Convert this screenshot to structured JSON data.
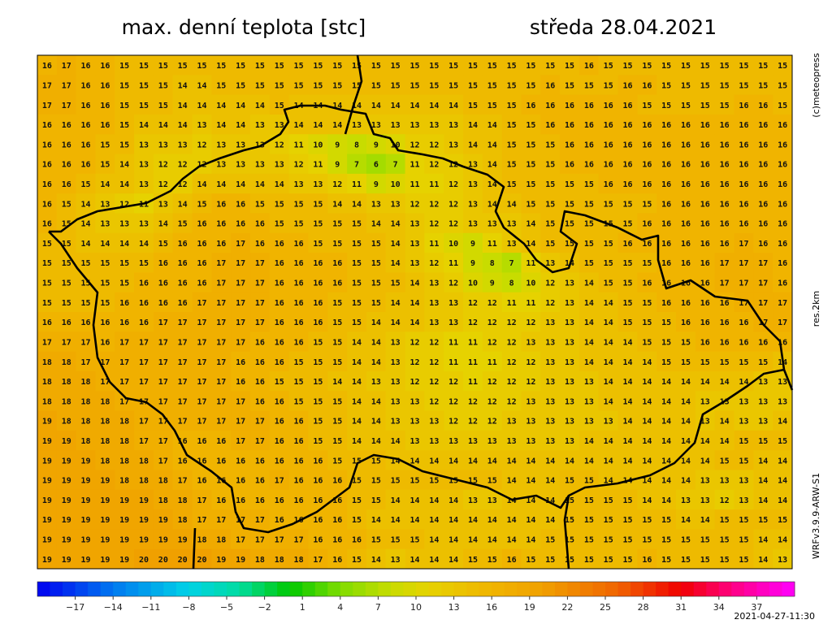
{
  "header": {
    "title": "max. denní teplota [stc]",
    "date": "středa 28.04.2021"
  },
  "side": {
    "copyright": "(c)meteopress",
    "resolution": "res.2km",
    "model": "WRFv3.9.9-ARW-S1"
  },
  "footer": {
    "run": "2021-04-27-11:30"
  },
  "colorbar": {
    "lim": [
      -20,
      40
    ],
    "stops": [
      [
        -20,
        "#0000f0"
      ],
      [
        -14,
        "#0078f0"
      ],
      [
        -8,
        "#00d2e6"
      ],
      [
        -4,
        "#00dca0"
      ],
      [
        0,
        "#00c800"
      ],
      [
        4,
        "#80dc00"
      ],
      [
        8,
        "#c8dc00"
      ],
      [
        11,
        "#e6d200"
      ],
      [
        16,
        "#f0b400"
      ],
      [
        20,
        "#f0a000"
      ],
      [
        26,
        "#f06400"
      ],
      [
        31,
        "#f00000"
      ],
      [
        35,
        "#ff0080"
      ],
      [
        40,
        "#ff00ff"
      ]
    ],
    "ticks": [
      {
        "value": -17,
        "label": "−17"
      },
      {
        "value": -14,
        "label": "−14"
      },
      {
        "value": -11,
        "label": "−11"
      },
      {
        "value": -8,
        "label": "−8"
      },
      {
        "value": -5,
        "label": "−5"
      },
      {
        "value": -2,
        "label": "−2"
      },
      1,
      4,
      7,
      10,
      13,
      16,
      19,
      22,
      25,
      28,
      31,
      34,
      37
    ]
  },
  "grid": {
    "rows": [
      [
        16,
        17,
        16,
        16,
        15,
        15,
        15,
        15,
        15,
        15,
        15,
        15,
        15,
        15,
        15,
        15,
        15,
        15,
        15,
        15,
        15,
        15,
        15,
        15,
        15,
        15,
        15,
        15,
        16,
        15,
        15,
        15,
        15,
        15,
        15,
        15,
        15,
        15,
        15
      ],
      [
        17,
        17,
        16,
        16,
        15,
        15,
        15,
        14,
        14,
        15,
        15,
        15,
        15,
        15,
        15,
        15,
        15,
        15,
        15,
        15,
        15,
        15,
        15,
        15,
        15,
        15,
        16,
        15,
        15,
        15,
        16,
        16,
        15,
        15,
        15,
        15,
        15,
        15,
        15
      ],
      [
        17,
        17,
        16,
        16,
        15,
        15,
        15,
        14,
        14,
        14,
        14,
        14,
        15,
        14,
        14,
        14,
        14,
        14,
        14,
        14,
        14,
        14,
        15,
        15,
        15,
        16,
        16,
        16,
        16,
        16,
        16,
        15,
        15,
        15,
        15,
        15,
        16,
        16,
        15
      ],
      [
        16,
        16,
        16,
        16,
        15,
        14,
        14,
        14,
        13,
        14,
        14,
        13,
        13,
        14,
        14,
        14,
        13,
        13,
        13,
        13,
        13,
        13,
        14,
        14,
        15,
        15,
        16,
        16,
        16,
        16,
        16,
        16,
        16,
        16,
        16,
        16,
        16,
        16,
        16
      ],
      [
        16,
        16,
        16,
        15,
        15,
        13,
        13,
        13,
        12,
        13,
        13,
        13,
        12,
        11,
        10,
        9,
        8,
        9,
        10,
        12,
        12,
        13,
        14,
        14,
        15,
        15,
        15,
        16,
        16,
        16,
        16,
        16,
        16,
        16,
        16,
        16,
        16,
        16,
        16
      ],
      [
        16,
        16,
        16,
        15,
        14,
        13,
        12,
        12,
        12,
        13,
        13,
        13,
        13,
        12,
        11,
        9,
        7,
        6,
        7,
        11,
        12,
        12,
        13,
        14,
        15,
        15,
        15,
        16,
        16,
        16,
        16,
        16,
        16,
        16,
        16,
        16,
        16,
        16,
        16
      ],
      [
        16,
        16,
        15,
        14,
        14,
        13,
        12,
        12,
        14,
        14,
        14,
        14,
        14,
        13,
        13,
        12,
        11,
        9,
        10,
        11,
        11,
        12,
        13,
        14,
        15,
        15,
        15,
        15,
        15,
        16,
        16,
        16,
        16,
        16,
        16,
        16,
        16,
        16,
        16
      ],
      [
        16,
        15,
        14,
        13,
        12,
        11,
        13,
        14,
        15,
        16,
        16,
        15,
        15,
        15,
        15,
        14,
        14,
        13,
        13,
        12,
        12,
        12,
        13,
        14,
        14,
        15,
        15,
        15,
        15,
        15,
        15,
        15,
        16,
        16,
        16,
        16,
        16,
        16,
        16
      ],
      [
        16,
        15,
        14,
        13,
        13,
        13,
        14,
        15,
        16,
        16,
        16,
        16,
        15,
        15,
        15,
        15,
        15,
        14,
        14,
        13,
        12,
        12,
        13,
        13,
        13,
        14,
        15,
        15,
        15,
        15,
        15,
        16,
        16,
        16,
        16,
        16,
        16,
        16,
        16
      ],
      [
        15,
        15,
        14,
        14,
        14,
        14,
        15,
        16,
        16,
        16,
        17,
        16,
        16,
        16,
        15,
        15,
        15,
        15,
        14,
        13,
        11,
        10,
        9,
        11,
        13,
        14,
        15,
        15,
        15,
        15,
        16,
        16,
        16,
        16,
        16,
        16,
        17,
        16,
        16
      ],
      [
        15,
        15,
        15,
        15,
        15,
        15,
        16,
        16,
        16,
        17,
        17,
        17,
        16,
        16,
        16,
        16,
        15,
        15,
        14,
        13,
        12,
        11,
        9,
        8,
        7,
        11,
        13,
        14,
        15,
        15,
        15,
        15,
        16,
        16,
        16,
        17,
        17,
        17,
        16
      ],
      [
        15,
        15,
        15,
        15,
        15,
        16,
        16,
        16,
        16,
        17,
        17,
        17,
        16,
        16,
        16,
        16,
        15,
        15,
        15,
        14,
        13,
        12,
        10,
        9,
        8,
        10,
        12,
        13,
        14,
        15,
        15,
        16,
        16,
        16,
        16,
        17,
        17,
        17,
        16
      ],
      [
        15,
        15,
        15,
        15,
        16,
        16,
        16,
        16,
        17,
        17,
        17,
        17,
        16,
        16,
        16,
        15,
        15,
        15,
        14,
        14,
        13,
        13,
        12,
        12,
        11,
        11,
        12,
        13,
        14,
        14,
        15,
        15,
        16,
        16,
        16,
        16,
        17,
        17,
        17
      ],
      [
        16,
        16,
        16,
        16,
        16,
        16,
        17,
        17,
        17,
        17,
        17,
        17,
        16,
        16,
        16,
        15,
        15,
        14,
        14,
        14,
        13,
        13,
        12,
        12,
        12,
        12,
        13,
        13,
        14,
        14,
        15,
        15,
        15,
        16,
        16,
        16,
        16,
        17,
        17
      ],
      [
        17,
        17,
        17,
        16,
        17,
        17,
        17,
        17,
        17,
        17,
        17,
        16,
        16,
        16,
        15,
        15,
        14,
        14,
        13,
        12,
        12,
        11,
        11,
        12,
        12,
        13,
        13,
        13,
        14,
        14,
        14,
        15,
        15,
        15,
        16,
        16,
        16,
        16,
        16
      ],
      [
        18,
        18,
        17,
        17,
        17,
        17,
        17,
        17,
        17,
        17,
        16,
        16,
        16,
        15,
        15,
        15,
        14,
        14,
        13,
        12,
        12,
        11,
        11,
        11,
        12,
        12,
        13,
        13,
        14,
        14,
        14,
        14,
        15,
        15,
        15,
        15,
        15,
        15,
        14
      ],
      [
        18,
        18,
        18,
        17,
        17,
        17,
        17,
        17,
        17,
        17,
        16,
        16,
        15,
        15,
        15,
        14,
        14,
        13,
        13,
        12,
        12,
        12,
        11,
        12,
        12,
        12,
        13,
        13,
        13,
        14,
        14,
        14,
        14,
        14,
        14,
        14,
        14,
        13,
        13
      ],
      [
        18,
        18,
        18,
        18,
        17,
        17,
        17,
        17,
        17,
        17,
        17,
        16,
        16,
        15,
        15,
        15,
        14,
        14,
        13,
        13,
        12,
        12,
        12,
        12,
        12,
        13,
        13,
        13,
        13,
        14,
        14,
        14,
        14,
        14,
        13,
        13,
        13,
        13,
        13
      ],
      [
        19,
        18,
        18,
        18,
        18,
        17,
        17,
        17,
        17,
        17,
        17,
        17,
        16,
        16,
        15,
        15,
        14,
        14,
        13,
        13,
        13,
        12,
        12,
        12,
        13,
        13,
        13,
        13,
        13,
        13,
        14,
        14,
        14,
        14,
        13,
        14,
        13,
        13,
        14
      ],
      [
        19,
        19,
        18,
        18,
        18,
        17,
        17,
        16,
        16,
        16,
        17,
        17,
        16,
        16,
        15,
        15,
        14,
        14,
        14,
        13,
        13,
        13,
        13,
        13,
        13,
        13,
        13,
        13,
        14,
        14,
        14,
        14,
        14,
        14,
        14,
        14,
        15,
        15,
        15
      ],
      [
        19,
        19,
        19,
        18,
        18,
        18,
        17,
        16,
        16,
        16,
        16,
        16,
        16,
        16,
        16,
        15,
        15,
        15,
        14,
        14,
        14,
        14,
        14,
        14,
        14,
        14,
        14,
        14,
        14,
        14,
        14,
        14,
        14,
        14,
        14,
        15,
        15,
        14,
        14
      ],
      [
        19,
        19,
        19,
        19,
        18,
        18,
        18,
        17,
        16,
        16,
        16,
        16,
        17,
        16,
        16,
        16,
        15,
        15,
        15,
        15,
        15,
        15,
        15,
        15,
        14,
        14,
        14,
        15,
        15,
        14,
        14,
        14,
        14,
        14,
        13,
        13,
        13,
        14,
        14
      ],
      [
        19,
        19,
        19,
        19,
        19,
        19,
        18,
        18,
        17,
        16,
        16,
        16,
        16,
        16,
        16,
        16,
        15,
        15,
        14,
        14,
        14,
        14,
        13,
        13,
        14,
        14,
        14,
        15,
        15,
        15,
        15,
        14,
        14,
        13,
        13,
        12,
        13,
        14,
        14
      ],
      [
        19,
        19,
        19,
        19,
        19,
        19,
        19,
        18,
        17,
        17,
        17,
        17,
        16,
        16,
        16,
        16,
        15,
        14,
        14,
        14,
        14,
        14,
        14,
        14,
        14,
        14,
        14,
        15,
        15,
        15,
        15,
        15,
        15,
        14,
        14,
        15,
        15,
        15,
        15
      ],
      [
        19,
        19,
        19,
        19,
        19,
        19,
        19,
        19,
        18,
        18,
        17,
        17,
        17,
        17,
        16,
        16,
        16,
        15,
        15,
        15,
        14,
        14,
        14,
        14,
        14,
        14,
        15,
        15,
        15,
        15,
        15,
        15,
        15,
        15,
        15,
        15,
        15,
        14,
        14
      ],
      [
        19,
        19,
        19,
        19,
        19,
        20,
        20,
        20,
        20,
        19,
        19,
        18,
        18,
        18,
        17,
        16,
        15,
        14,
        13,
        14,
        14,
        14,
        15,
        15,
        16,
        15,
        15,
        15,
        15,
        15,
        15,
        16,
        15,
        15,
        15,
        15,
        15,
        14,
        13
      ]
    ]
  }
}
